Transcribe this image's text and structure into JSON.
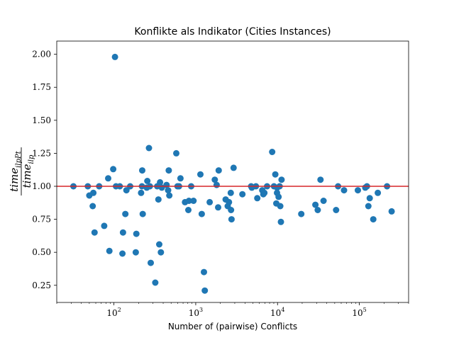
{
  "chart_data": {
    "type": "scatter",
    "title": "Konflikte als Indikator (Cities Instances)",
    "xlabel": "Number of (pairwise) Conflicts",
    "ylabel": {
      "numerator": "time",
      "numerator_sub": "ilpPt",
      "denominator": "time",
      "denominator_sub": "ilp"
    },
    "x_scale": "log",
    "xlim": [
      20,
      400000
    ],
    "ylim": [
      0.12,
      2.1
    ],
    "x_ticks": [
      {
        "value": 100,
        "base": "10",
        "exp": "2"
      },
      {
        "value": 1000,
        "base": "10",
        "exp": "3"
      },
      {
        "value": 10000,
        "base": "10",
        "exp": "4"
      },
      {
        "value": 100000,
        "base": "10",
        "exp": "5"
      }
    ],
    "y_ticks": [
      {
        "value": 0.25,
        "label": "0.25"
      },
      {
        "value": 0.5,
        "label": "0.50"
      },
      {
        "value": 0.75,
        "label": "0.75"
      },
      {
        "value": 1.0,
        "label": "1.00"
      },
      {
        "value": 1.25,
        "label": "1.25"
      },
      {
        "value": 1.5,
        "label": "1.50"
      },
      {
        "value": 1.75,
        "label": "1.75"
      },
      {
        "value": 2.0,
        "label": "2.00"
      }
    ],
    "reference_line": {
      "y": 1.0,
      "color": "#d62728"
    },
    "point_color": "#1f77b4",
    "grid": false,
    "points": [
      [
        32,
        1.0
      ],
      [
        48,
        1.0
      ],
      [
        50,
        0.93
      ],
      [
        55,
        0.85
      ],
      [
        56,
        0.95
      ],
      [
        58,
        0.65
      ],
      [
        66,
        1.0
      ],
      [
        76,
        0.7
      ],
      [
        85,
        1.06
      ],
      [
        88,
        0.51
      ],
      [
        98,
        1.13
      ],
      [
        103,
        1.98
      ],
      [
        106,
        1.0
      ],
      [
        118,
        1.0
      ],
      [
        127,
        0.49
      ],
      [
        129,
        0.65
      ],
      [
        138,
        0.79
      ],
      [
        142,
        0.97
      ],
      [
        158,
        1.0
      ],
      [
        185,
        0.5
      ],
      [
        188,
        0.64
      ],
      [
        215,
        0.95
      ],
      [
        220,
        1.0
      ],
      [
        222,
        1.12
      ],
      [
        225,
        0.79
      ],
      [
        252,
        0.99
      ],
      [
        256,
        1.04
      ],
      [
        268,
        1.29
      ],
      [
        275,
        1.0
      ],
      [
        282,
        0.42
      ],
      [
        320,
        0.27
      ],
      [
        338,
        1.0
      ],
      [
        350,
        0.9
      ],
      [
        358,
        0.56
      ],
      [
        366,
        1.03
      ],
      [
        375,
        0.5
      ],
      [
        385,
        0.99
      ],
      [
        440,
        1.01
      ],
      [
        460,
        0.97
      ],
      [
        468,
        1.12
      ],
      [
        476,
        0.93
      ],
      [
        578,
        1.25
      ],
      [
        598,
        1.0
      ],
      [
        625,
        1.0
      ],
      [
        650,
        1.06
      ],
      [
        740,
        0.88
      ],
      [
        812,
        0.82
      ],
      [
        825,
        0.89
      ],
      [
        880,
        1.0
      ],
      [
        940,
        0.89
      ],
      [
        1140,
        1.09
      ],
      [
        1185,
        0.79
      ],
      [
        1260,
        0.35
      ],
      [
        1290,
        0.21
      ],
      [
        1480,
        0.88
      ],
      [
        1710,
        1.05
      ],
      [
        1800,
        1.01
      ],
      [
        1880,
        0.84
      ],
      [
        1910,
        1.12
      ],
      [
        2320,
        0.9
      ],
      [
        2460,
        0.85
      ],
      [
        2550,
        0.88
      ],
      [
        2680,
        0.95
      ],
      [
        2700,
        0.82
      ],
      [
        2740,
        0.75
      ],
      [
        2900,
        1.14
      ],
      [
        3720,
        0.94
      ],
      [
        4750,
        1.0
      ],
      [
        4850,
        0.99
      ],
      [
        5450,
        1.0
      ],
      [
        5650,
        0.91
      ],
      [
        6500,
        0.97
      ],
      [
        6700,
        0.94
      ],
      [
        6900,
        0.95
      ],
      [
        7450,
        1.0
      ],
      [
        8600,
        1.26
      ],
      [
        9050,
        1.0
      ],
      [
        9400,
        1.09
      ],
      [
        9650,
        0.87
      ],
      [
        9850,
        0.95
      ],
      [
        9900,
        0.99
      ],
      [
        10300,
        0.92
      ],
      [
        10600,
        1.0
      ],
      [
        10800,
        0.85
      ],
      [
        11000,
        0.73
      ],
      [
        11200,
        1.05
      ],
      [
        19500,
        0.79
      ],
      [
        29000,
        0.86
      ],
      [
        31000,
        0.82
      ],
      [
        33500,
        1.05
      ],
      [
        36500,
        0.89
      ],
      [
        52000,
        0.82
      ],
      [
        55000,
        1.0
      ],
      [
        65000,
        0.97
      ],
      [
        96000,
        0.97
      ],
      [
        118000,
        0.99
      ],
      [
        124000,
        1.0
      ],
      [
        129000,
        0.85
      ],
      [
        134000,
        0.91
      ],
      [
        148000,
        0.75
      ],
      [
        168000,
        0.95
      ],
      [
        218000,
        1.0
      ],
      [
        248000,
        0.81
      ]
    ]
  }
}
